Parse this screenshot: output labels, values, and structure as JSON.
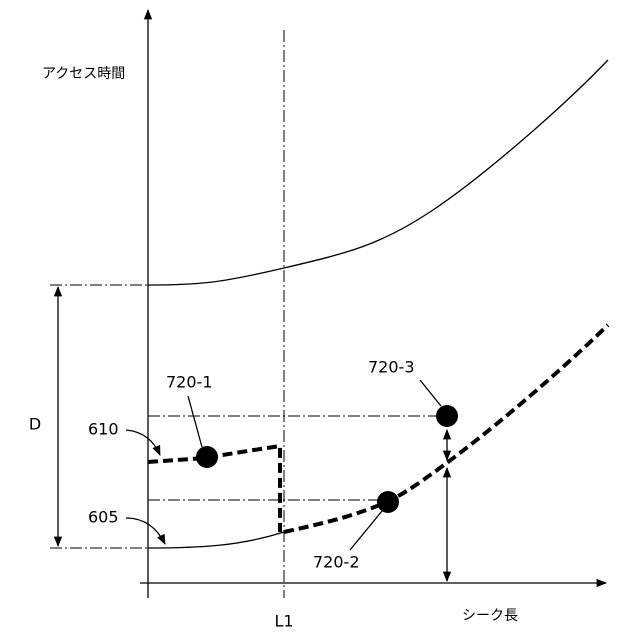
{
  "axes": {
    "y_label": "アクセス時間",
    "x_label": "シーク長",
    "x_marker": "L1"
  },
  "dimension": {
    "label": "D"
  },
  "curves": {
    "upper_label": "610",
    "lower_label": "605"
  },
  "points": [
    {
      "label": "720-1"
    },
    {
      "label": "720-2"
    },
    {
      "label": "720-3"
    }
  ]
}
